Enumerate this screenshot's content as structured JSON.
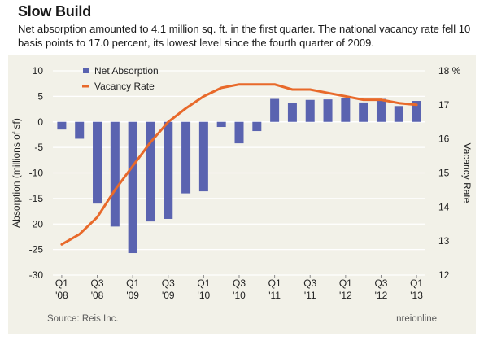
{
  "header": {
    "title": "Slow Build",
    "subtitle": "Net absorption amounted to 4.1 million sq. ft. in the first quarter. The national vacancy rate fell 10 basis points to 17.0 percent, its lowest level since the fourth quarter of 2009."
  },
  "footer": {
    "source": "Source: Reis Inc.",
    "credit": "nreionline"
  },
  "colors": {
    "bar": "#5a63b0",
    "line": "#e8692a",
    "panel": "#f2f1e8",
    "grid": "#ffffff"
  },
  "chart_data": {
    "type": "bar",
    "combo": "bar+line (dual axis)",
    "x_tick_labels": [
      {
        "index": 0,
        "top": "Q1",
        "bottom": "'08"
      },
      {
        "index": 2,
        "top": "Q3",
        "bottom": "'08"
      },
      {
        "index": 4,
        "top": "Q1",
        "bottom": "'09"
      },
      {
        "index": 6,
        "top": "Q3",
        "bottom": "'09"
      },
      {
        "index": 8,
        "top": "Q1",
        "bottom": "'10"
      },
      {
        "index": 10,
        "top": "Q3",
        "bottom": "'10"
      },
      {
        "index": 12,
        "top": "Q1",
        "bottom": "'11"
      },
      {
        "index": 14,
        "top": "Q3",
        "bottom": "'11"
      },
      {
        "index": 16,
        "top": "Q1",
        "bottom": "'12"
      },
      {
        "index": 18,
        "top": "Q3",
        "bottom": "'12"
      },
      {
        "index": 20,
        "top": "Q1",
        "bottom": "'13"
      }
    ],
    "series": [
      {
        "name": "Net Absorption",
        "kind": "bar",
        "axis": "left",
        "values": [
          -1.5,
          -3.3,
          -16,
          -20.5,
          -25.7,
          -19.5,
          -19,
          -14,
          -13.6,
          -1,
          -4.2,
          -1.8,
          4.5,
          3.7,
          4.3,
          4.4,
          4.7,
          3.8,
          4.5,
          3.1,
          4.1
        ]
      },
      {
        "name": "Vacancy Rate",
        "kind": "line",
        "axis": "right",
        "values": [
          12.9,
          13.2,
          13.7,
          14.5,
          15.2,
          15.9,
          16.5,
          16.9,
          17.25,
          17.5,
          17.6,
          17.6,
          17.6,
          17.45,
          17.45,
          17.35,
          17.25,
          17.15,
          17.15,
          17.05,
          17.0
        ]
      }
    ],
    "left_axis": {
      "label": "Absorption (millions of sf)",
      "ylim": [
        -30,
        10
      ],
      "ticks": [
        10,
        5,
        0,
        -5,
        -10,
        -15,
        -20,
        -25,
        -30
      ]
    },
    "right_axis": {
      "label": "Vacancy Rate",
      "ylim": [
        12,
        18
      ],
      "ticks": [
        18,
        17,
        16,
        15,
        14,
        13,
        12
      ],
      "top_tick_label": "18 %"
    },
    "grid": true,
    "legend_position": "top-left"
  }
}
